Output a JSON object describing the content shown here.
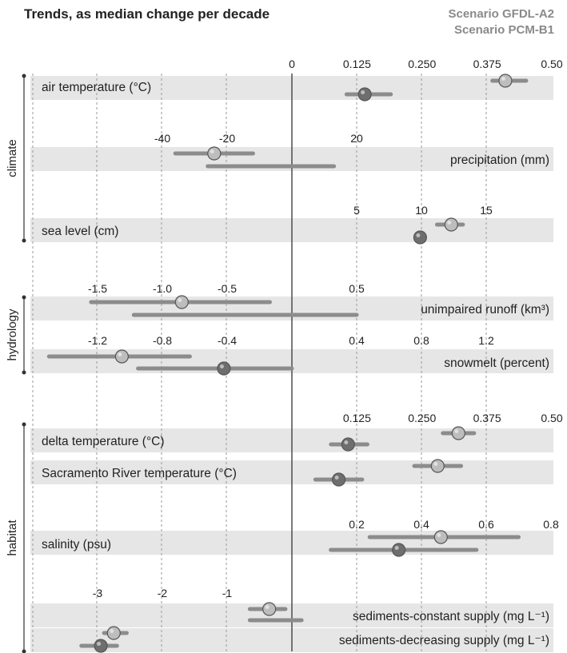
{
  "header": {
    "title": "Trends, as median change per decade",
    "legend": [
      "Scenario GFDL-A2",
      "Scenario PCM-B1"
    ]
  },
  "colors": {
    "band": "#e6e6e6",
    "bar": "#8c8c8c",
    "a2_marker": "#bdbdbd",
    "b1_marker": "#6e6e6e",
    "axis": "#333333",
    "grid": "#9a9a9a"
  },
  "chart_data": {
    "type": "dot-and-range",
    "title": "Trends, as median change per decade",
    "legend": {
      "entries": [
        "Scenario GFDL-A2",
        "Scenario PCM-B1"
      ],
      "placement": "top-right"
    },
    "groups": [
      "climate",
      "hydrology",
      "habitat"
    ],
    "scales": {
      "temp": {
        "ticks": [
          "0",
          "0.125",
          "0.250",
          "0.375",
          "0.50"
        ],
        "values": [
          0,
          0.125,
          0.25,
          0.375,
          0.5
        ]
      },
      "precip": {
        "ticks": [
          "-40",
          "-20",
          "20"
        ],
        "values": [
          -40,
          -20,
          20
        ]
      },
      "sealevel": {
        "ticks": [
          "5",
          "10",
          "15"
        ],
        "values": [
          5,
          10,
          15
        ]
      },
      "runoff": {
        "ticks": [
          "-1.5",
          "-1.0",
          "-0.5",
          "0.5"
        ],
        "values": [
          -1.5,
          -1.0,
          -0.5,
          0.5
        ]
      },
      "snowmelt": {
        "ticks": [
          "-1.2",
          "-0.8",
          "-0.4",
          "0.4",
          "0.8",
          "1.2"
        ],
        "values": [
          -1.2,
          -0.8,
          -0.4,
          0.4,
          0.8,
          1.2
        ]
      },
      "habitat_temp": {
        "ticks": [
          "0.125",
          "0.250",
          "0.375",
          "0.50"
        ],
        "values": [
          0.125,
          0.25,
          0.375,
          0.5
        ]
      },
      "salinity": {
        "ticks": [
          "0.2",
          "0.4",
          "0.6",
          "0.8"
        ],
        "values": [
          0.2,
          0.4,
          0.6,
          0.8
        ]
      },
      "sediment": {
        "ticks": [
          "-3",
          "-2",
          "-1"
        ],
        "values": [
          -3,
          -2,
          -1
        ]
      }
    },
    "variables": [
      {
        "group": "climate",
        "label": "air temperature (°C)",
        "scale": "temp",
        "label_align": "left",
        "a2": {
          "median": 0.41,
          "low": 0.385,
          "high": 0.45
        },
        "b1": {
          "median": 0.14,
          "low": 0.105,
          "high": 0.19
        }
      },
      {
        "group": "climate",
        "label": "precipitation (mm)",
        "scale": "precip",
        "label_align": "right",
        "a2": {
          "median": -24,
          "low": -36,
          "high": -12
        },
        "b1": {
          "median": null,
          "low": -26,
          "high": 13
        }
      },
      {
        "group": "climate",
        "label": "sea level (cm)",
        "scale": "sealevel",
        "label_align": "left",
        "a2": {
          "median": 12.3,
          "low": 11.2,
          "high": 13.2
        },
        "b1": {
          "median": 9.9,
          "low": 9.9,
          "high": 9.9
        }
      },
      {
        "group": "hydrology",
        "label": "unimpaired runoff (km³)",
        "scale": "runoff",
        "label_align": "right",
        "a2": {
          "median": -0.85,
          "low": -1.55,
          "high": -0.17
        },
        "b1": {
          "median": null,
          "low": -1.22,
          "high": 0.5
        }
      },
      {
        "group": "hydrology",
        "label": "snowmelt (percent)",
        "scale": "snowmelt",
        "label_align": "right",
        "a2": {
          "median": -1.05,
          "low": -1.5,
          "high": -0.63
        },
        "b1": {
          "median": -0.42,
          "low": -0.95,
          "high": 0.0
        }
      },
      {
        "group": "habitat",
        "label": "delta temperature (°C)",
        "scale": "habitat_temp",
        "label_align": "left",
        "a2": {
          "median": 0.32,
          "low": 0.29,
          "high": 0.35
        },
        "b1": {
          "median": 0.108,
          "low": 0.075,
          "high": 0.145
        }
      },
      {
        "group": "habitat",
        "label": "Sacramento River temperature (°C)",
        "scale": "habitat_temp",
        "label_align": "left",
        "a2": {
          "median": 0.28,
          "low": 0.235,
          "high": 0.325
        },
        "b1": {
          "median": 0.09,
          "low": 0.045,
          "high": 0.135
        }
      },
      {
        "group": "habitat",
        "label": "salinity (psu)",
        "scale": "salinity",
        "label_align": "left",
        "a2": {
          "median": 0.46,
          "low": 0.24,
          "high": 0.7
        },
        "b1": {
          "median": 0.33,
          "low": 0.12,
          "high": 0.57
        }
      },
      {
        "group": "habitat",
        "label": "sediments-constant supply (mg L⁻¹)",
        "scale": "sediment",
        "label_align": "right",
        "a2": {
          "median": -0.35,
          "low": -0.65,
          "high": -0.1
        },
        "b1": {
          "median": null,
          "low": -0.65,
          "high": 0.15
        }
      },
      {
        "group": "habitat",
        "label": "sediments-decreasing supply (mg L⁻¹)",
        "scale": "sediment",
        "label_align": "right",
        "a2": {
          "median": -2.75,
          "low": -2.9,
          "high": -2.55
        },
        "b1": {
          "median": -2.95,
          "low": -3.25,
          "high": -2.7
        }
      }
    ]
  }
}
